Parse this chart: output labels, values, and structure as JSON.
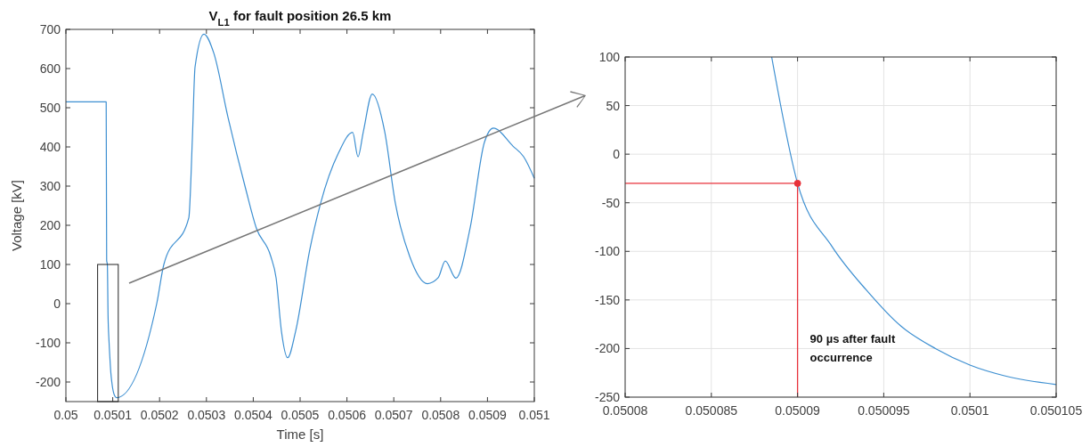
{
  "chart_data": [
    {
      "type": "line",
      "title": "V$_{L1}$ for fault position 26.5 km",
      "xlabel": "Time [s]",
      "ylabel": "Voltage [kV]",
      "xlim": [
        0.05,
        0.051
      ],
      "xticks": [
        0.05,
        0.0501,
        0.0502,
        0.0503,
        0.0504,
        0.0505,
        0.0506,
        0.0507,
        0.0508,
        0.0509,
        0.051
      ],
      "ylim": [
        -250,
        700
      ],
      "yticks": [
        -200,
        -100,
        0,
        100,
        200,
        300,
        400,
        500,
        600,
        700
      ],
      "grid": false,
      "series": [
        {
          "color": "#3d8fd1",
          "x": [
            0.05,
            0.050086,
            0.050087,
            0.0500885,
            0.05009,
            0.050092,
            0.050094,
            0.050096,
            0.050098,
            0.0501,
            0.050102,
            0.050105,
            0.0501084,
            0.0501939,
            0.0502091,
            0.0502624,
            0.05027,
            0.0502757,
            0.0502947,
            0.0503156,
            0.050346,
            0.050384,
            0.0504068,
            0.0504373,
            0.0504487,
            0.0504601,
            0.0504734,
            0.0504905,
            0.0505209,
            0.0505437,
            0.0505817,
            0.0506122,
            0.0506236,
            0.050635,
            0.050654,
            0.0506806,
            0.0507034,
            0.0507338,
            0.0507719,
            0.0507947,
            0.0508099,
            0.0508327,
            0.0508631,
            0.0508935,
            0.0509125,
            0.0509544,
            0.0509772,
            0.051
          ],
          "values": [
            515,
            515,
            110,
            100,
            -30,
            -95,
            -140,
            -177,
            -200,
            -217,
            -228,
            -237,
            -240,
            0,
            100,
            219,
            421,
            604,
            688,
            640,
            476,
            292,
            192,
            121,
            66,
            -70,
            -138,
            -70,
            139,
            256,
            384,
            437,
            375,
            439,
            535,
            439,
            256,
            121,
            51,
            66,
            109,
            65,
            194,
            412,
            448,
            402,
            375,
            320
          ]
        }
      ]
    },
    {
      "type": "line",
      "xlim": [
        0.05008,
        0.050105
      ],
      "xticks": [
        0.05008,
        0.050085,
        0.05009,
        0.050095,
        0.0501,
        0.050105
      ],
      "ylim": [
        -250,
        100
      ],
      "yticks": [
        -250,
        -200,
        -150,
        -100,
        -50,
        0,
        50,
        100
      ],
      "grid": true,
      "series": [
        {
          "color": "#3d8fd1",
          "x": [
            0.0500885,
            0.05009,
            0.050092,
            0.050094,
            0.050096,
            0.050098,
            0.0501,
            0.050102,
            0.050105
          ],
          "values": [
            100,
            -30,
            -95,
            -140,
            -177,
            -200,
            -217,
            -228,
            -237
          ]
        },
        {
          "type": "scatter",
          "color": "#e8313a",
          "marker": "circle",
          "x": [
            0.05009
          ],
          "values": [
            -30
          ]
        }
      ],
      "ref_lines": [
        {
          "axis": "x",
          "value": 0.05009,
          "color": "#e8313a"
        },
        {
          "axis": "y",
          "value": -30,
          "color": "#e8313a"
        }
      ],
      "annotations": [
        {
          "text": "90 µs after fault occurrence",
          "x": 0.05009,
          "y": -200
        }
      ]
    }
  ]
}
